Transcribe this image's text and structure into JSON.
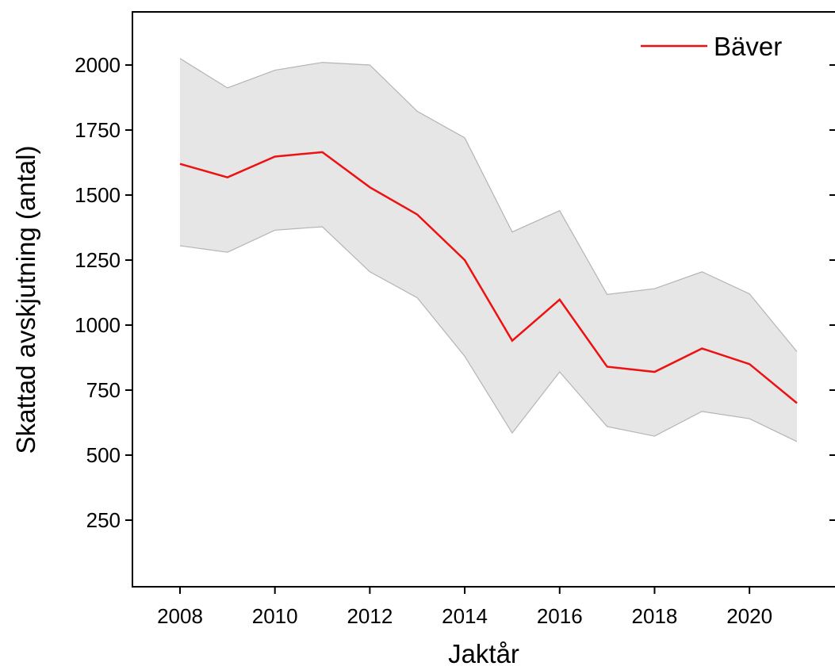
{
  "chart_data": {
    "type": "line",
    "title": "",
    "xlabel": "Jaktår",
    "ylabel": "Skattad avskjutning (antal)",
    "xlim": [
      2007,
      2022
    ],
    "ylim": [
      0,
      2200
    ],
    "x_ticks": [
      2008,
      2010,
      2012,
      2014,
      2016,
      2018,
      2020
    ],
    "y_ticks": [
      250,
      500,
      750,
      1000,
      1250,
      1500,
      1750,
      2000
    ],
    "x": [
      2008,
      2009,
      2010,
      2011,
      2012,
      2013,
      2014,
      2015,
      2016,
      2017,
      2018,
      2019,
      2020,
      2021
    ],
    "series": [
      {
        "name": "Bäver",
        "color": "#ee1111",
        "values": [
          1620,
          1568,
          1648,
          1665,
          1530,
          1425,
          1250,
          940,
          1098,
          840,
          820,
          910,
          850,
          700
        ],
        "lower": [
          1305,
          1280,
          1365,
          1378,
          1205,
          1105,
          880,
          585,
          820,
          610,
          573,
          668,
          640,
          552
        ],
        "upper": [
          2025,
          1912,
          1980,
          2010,
          2000,
          1822,
          1720,
          1358,
          1440,
          1118,
          1140,
          1205,
          1120,
          898
        ]
      }
    ],
    "band_color": "#e6e6e6",
    "band_edge_color": "#b4b4b4",
    "grid": false,
    "legend_position": "top-right"
  }
}
